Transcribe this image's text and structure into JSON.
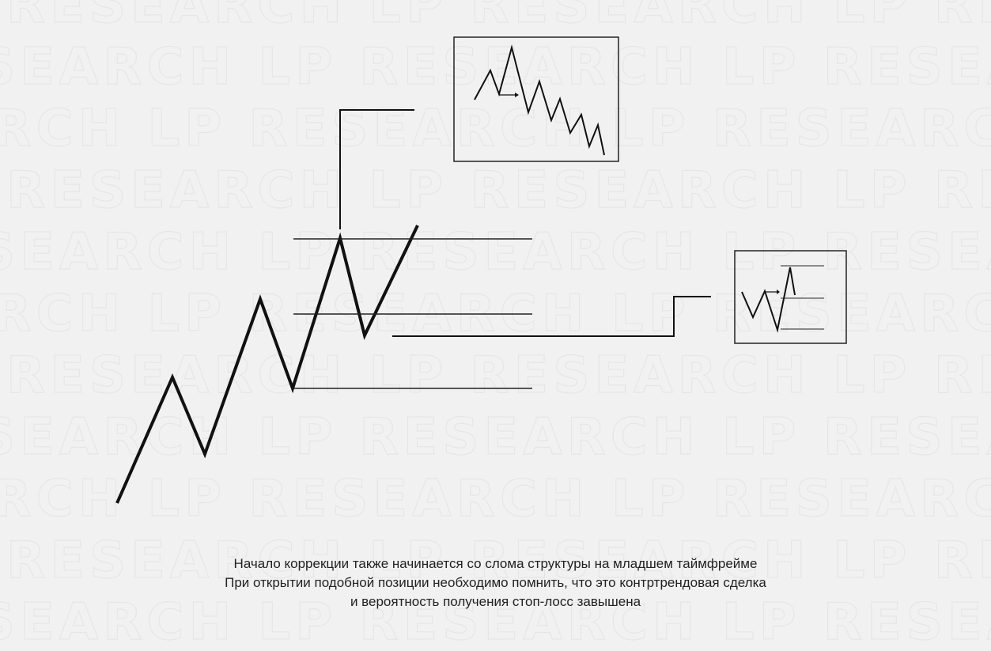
{
  "watermark": {
    "text": "LP RESEARCH"
  },
  "caption": {
    "line1": "Начало коррекции также начинается со слома структуры на младшем таймфрейме",
    "line2": "При открытии подобной позиции необходимо помнить, что это контртрендовая сделка",
    "line3": "и вероятность получения стоп-лосс завышена"
  },
  "colors": {
    "background": "#f1f1f1",
    "stroke": "#111111",
    "watermark": "#e6e6e6",
    "text": "#222222"
  }
}
